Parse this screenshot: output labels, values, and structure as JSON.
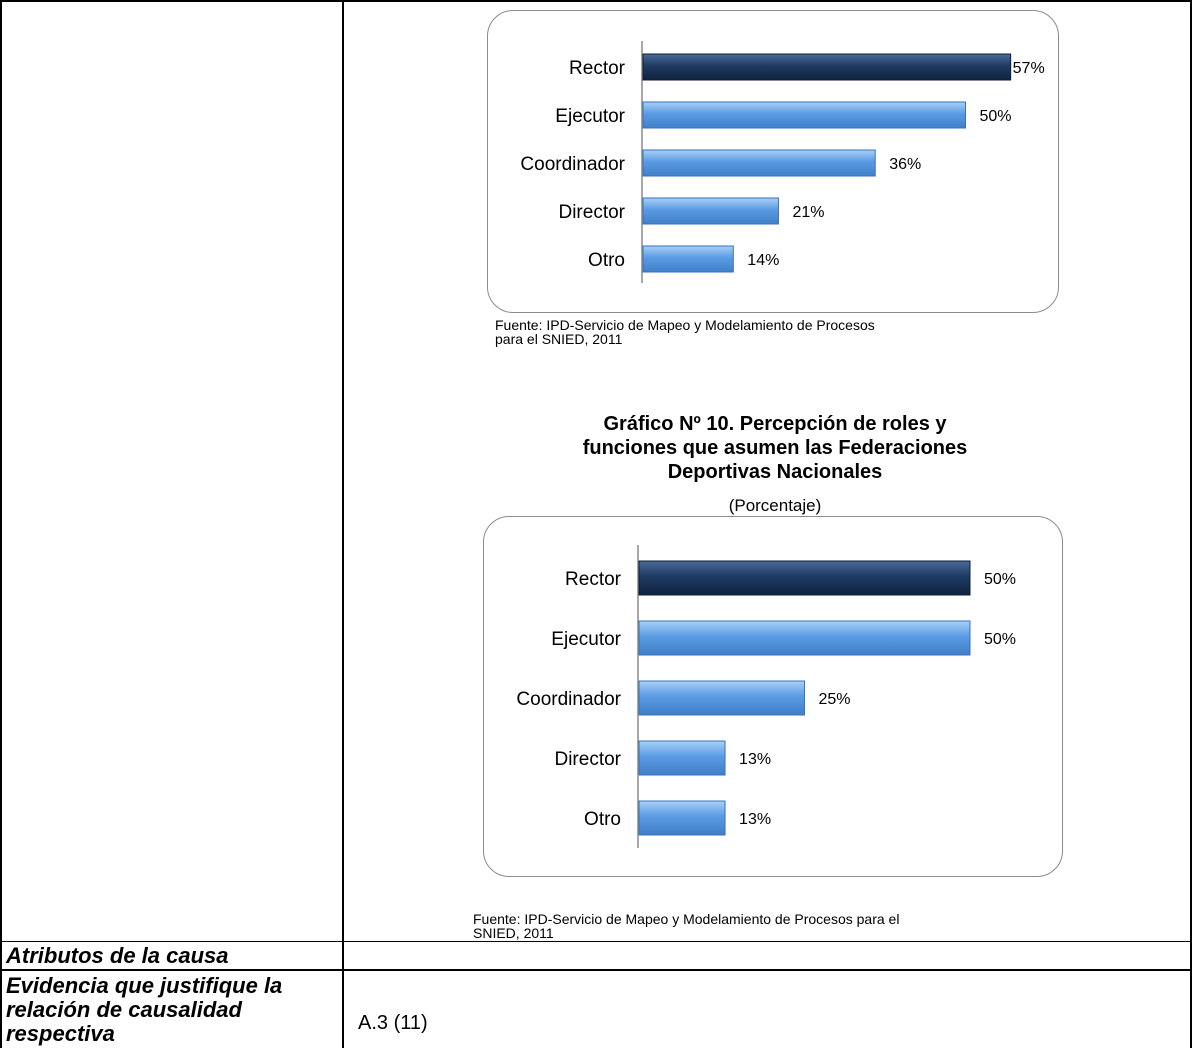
{
  "chart1": {
    "title": "",
    "source": [
      "Fuente: IPD-Servicio de Mapeo y Modelamiento de Procesos",
      "para el SNIED, 2011"
    ]
  },
  "chart2": {
    "title": [
      "Gráfico Nº 10. Percepción de roles y",
      "funciones que asumen las Federaciones",
      "Deportivas Nacionales"
    ],
    "subtitle": "(Porcentaje)",
    "source": [
      "Fuente: IPD-Servicio de Mapeo y Modelamiento de Procesos para el",
      "SNIED, 2011"
    ]
  },
  "table": {
    "rows": [
      {
        "label": [
          "Atributos de la causa"
        ],
        "value": ""
      },
      {
        "label": [
          "Evidencia que justifique la",
          "relación de causalidad",
          "respectiva"
        ],
        "value": "A.3 (11)"
      }
    ]
  },
  "colors": {
    "highlight_bar": "#1f3b63",
    "bar": "#5a9be3",
    "frame": "#8c8c8c"
  },
  "chart_data": [
    {
      "type": "bar",
      "orientation": "horizontal",
      "categories": [
        "Rector",
        "Ejecutor",
        "Coordinador",
        "Director",
        "Otro"
      ],
      "values": [
        57,
        50,
        36,
        21,
        14
      ],
      "labels": [
        "57%",
        "50%",
        "36%",
        "21%",
        "14%"
      ],
      "highlight_index": 0
    },
    {
      "type": "bar",
      "orientation": "horizontal",
      "categories": [
        "Rector",
        "Ejecutor",
        "Coordinador",
        "Director",
        "Otro"
      ],
      "values": [
        50,
        50,
        25,
        13,
        13
      ],
      "labels": [
        "50%",
        "50%",
        "25%",
        "13%",
        "13%"
      ],
      "highlight_index": 0
    }
  ]
}
